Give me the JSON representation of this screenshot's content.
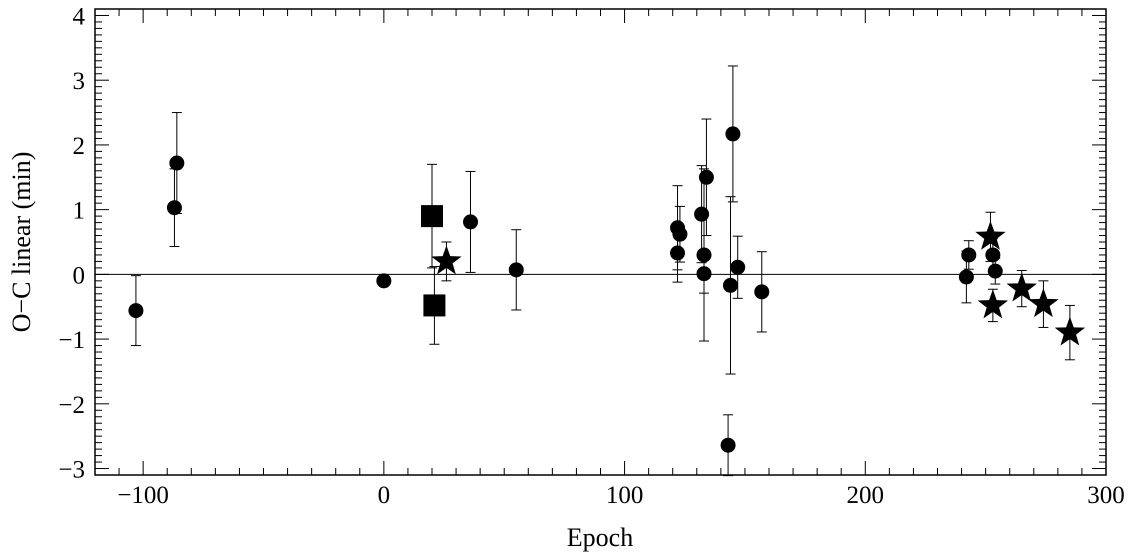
{
  "chart_data": {
    "type": "scatter",
    "xlabel": "Epoch",
    "ylabel": "O−C linear (min)",
    "xlim": [
      -120,
      300
    ],
    "ylim": [
      -3.1,
      4.1
    ],
    "x_ticks": [
      {
        "value": -100,
        "label": "−100"
      },
      {
        "value": 0,
        "label": "0"
      },
      {
        "value": 100,
        "label": "100"
      },
      {
        "value": 200,
        "label": "200"
      },
      {
        "value": 300,
        "label": "300"
      }
    ],
    "y_ticks": [
      {
        "value": -3,
        "label": "−3"
      },
      {
        "value": -2,
        "label": "−2"
      },
      {
        "value": -1,
        "label": "−1"
      },
      {
        "value": 0,
        "label": "0"
      },
      {
        "value": 1,
        "label": "1"
      },
      {
        "value": 2,
        "label": "2"
      },
      {
        "value": 3,
        "label": "3"
      },
      {
        "value": 4,
        "label": "4"
      }
    ],
    "reference_line": 0,
    "series": [
      {
        "marker": "circle",
        "points": [
          {
            "x": -103,
            "y": -0.56,
            "err": 0.54
          },
          {
            "x": -87,
            "y": 1.03,
            "err": 0.6
          },
          {
            "x": -86,
            "y": 1.72,
            "err": 0.78
          },
          {
            "x": 0,
            "y": -0.1,
            "err": 0
          },
          {
            "x": 36,
            "y": 0.81,
            "err": 0.78
          },
          {
            "x": 55,
            "y": 0.07,
            "err": 0.62
          },
          {
            "x": 122,
            "y": 0.33,
            "err": 0.45
          },
          {
            "x": 122,
            "y": 0.72,
            "err": 0.65
          },
          {
            "x": 123,
            "y": 0.62,
            "err": 0.43
          },
          {
            "x": 132,
            "y": 0.93,
            "err": 0.75
          },
          {
            "x": 133,
            "y": 0.3,
            "err": 1.33
          },
          {
            "x": 133,
            "y": 0.01,
            "err": 0.3
          },
          {
            "x": 134,
            "y": 1.5,
            "err": 0.9
          },
          {
            "x": 143,
            "y": -2.64,
            "err": 0.47
          },
          {
            "x": 144,
            "y": -0.17,
            "err": 1.37
          },
          {
            "x": 145,
            "y": 2.17,
            "err": 1.05
          },
          {
            "x": 147,
            "y": 0.11,
            "err": 0.48
          },
          {
            "x": 157,
            "y": -0.27,
            "err": 0.62
          },
          {
            "x": 242,
            "y": -0.04,
            "err": 0.4
          },
          {
            "x": 243,
            "y": 0.3,
            "err": 0.22
          },
          {
            "x": 253,
            "y": 0.3,
            "err": 0.25
          },
          {
            "x": 254,
            "y": 0.05,
            "err": 0.2
          }
        ]
      },
      {
        "marker": "square",
        "points": [
          {
            "x": 20,
            "y": 0.9,
            "err": 0.8
          },
          {
            "x": 21,
            "y": -0.48,
            "err": 0.6
          }
        ]
      },
      {
        "marker": "star",
        "points": [
          {
            "x": 26,
            "y": 0.2,
            "err": 0.3
          },
          {
            "x": 252,
            "y": 0.58,
            "err": 0.38
          },
          {
            "x": 253,
            "y": -0.48,
            "err": 0.25
          },
          {
            "x": 265,
            "y": -0.22,
            "err": 0.28
          },
          {
            "x": 274,
            "y": -0.46,
            "err": 0.36
          },
          {
            "x": 285,
            "y": -0.9,
            "err": 0.42
          }
        ]
      }
    ]
  }
}
